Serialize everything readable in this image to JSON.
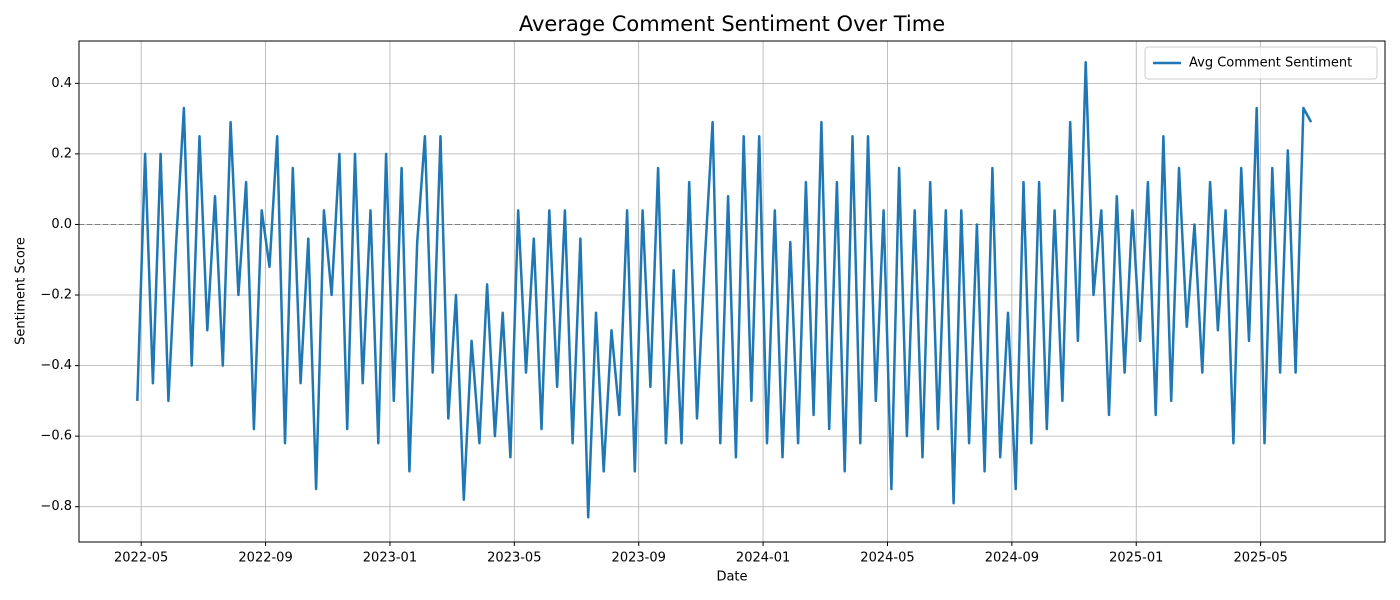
{
  "chart_data": {
    "type": "line",
    "title": "Average Comment Sentiment Over Time",
    "x_label": "Date",
    "y_label": "Sentiment Score",
    "x": [
      "2022-04",
      "2022-05",
      "2022-05",
      "2022-05",
      "2022-05",
      "2022-06",
      "2022-06",
      "2022-06",
      "2022-06",
      "2022-07",
      "2022-07",
      "2022-07",
      "2022-07",
      "2022-08",
      "2022-08",
      "2022-08",
      "2022-08",
      "2022-09",
      "2022-09",
      "2022-09",
      "2022-09",
      "2022-10",
      "2022-10",
      "2022-10",
      "2022-10",
      "2022-11",
      "2022-11",
      "2022-11",
      "2022-11",
      "2022-12",
      "2022-12",
      "2022-12",
      "2022-12",
      "2023-01",
      "2023-01",
      "2023-01",
      "2023-01",
      "2023-02",
      "2023-02",
      "2023-02",
      "2023-02",
      "2023-03",
      "2023-03",
      "2023-03",
      "2023-03",
      "2023-04",
      "2023-04",
      "2023-04",
      "2023-04",
      "2023-05",
      "2023-05",
      "2023-05",
      "2023-05",
      "2023-06",
      "2023-06",
      "2023-06",
      "2023-06",
      "2023-07",
      "2023-07",
      "2023-07",
      "2023-07",
      "2023-08",
      "2023-08",
      "2023-08",
      "2023-08",
      "2023-09",
      "2023-09",
      "2023-09",
      "2023-09",
      "2023-10",
      "2023-10",
      "2023-10",
      "2023-10",
      "2023-11",
      "2023-11",
      "2023-11",
      "2023-11",
      "2023-12",
      "2023-12",
      "2023-12",
      "2023-12",
      "2024-01",
      "2024-01",
      "2024-01",
      "2024-01",
      "2024-02",
      "2024-02",
      "2024-02",
      "2024-02",
      "2024-03",
      "2024-03",
      "2024-03",
      "2024-03",
      "2024-04",
      "2024-04",
      "2024-04",
      "2024-04",
      "2024-05",
      "2024-05",
      "2024-05",
      "2024-05",
      "2024-06",
      "2024-06",
      "2024-06",
      "2024-06",
      "2024-07",
      "2024-07",
      "2024-07",
      "2024-07",
      "2024-08",
      "2024-08",
      "2024-08",
      "2024-08",
      "2024-09",
      "2024-09",
      "2024-09",
      "2024-09",
      "2024-10",
      "2024-10",
      "2024-10",
      "2024-10",
      "2024-11",
      "2024-11",
      "2024-11",
      "2024-11",
      "2024-12",
      "2024-12",
      "2024-12",
      "2024-12",
      "2025-01",
      "2025-01",
      "2025-01",
      "2025-01",
      "2025-02",
      "2025-02",
      "2025-02",
      "2025-02",
      "2025-03",
      "2025-03",
      "2025-03",
      "2025-03",
      "2025-04",
      "2025-04",
      "2025-04",
      "2025-04",
      "2025-05",
      "2025-05",
      "2025-05",
      "2025-05",
      "2025-06",
      "2025-06",
      "2025-06"
    ],
    "series": [
      {
        "name": "Avg Comment Sentiment",
        "color": "#1f77b4",
        "values": [
          -0.5,
          0.2,
          -0.45,
          0.2,
          -0.5,
          -0.05,
          0.33,
          -0.4,
          0.25,
          -0.3,
          0.08,
          -0.4,
          0.29,
          -0.2,
          0.12,
          -0.58,
          0.04,
          -0.12,
          0.25,
          -0.62,
          0.16,
          -0.45,
          -0.04,
          -0.75,
          0.04,
          -0.2,
          0.2,
          -0.58,
          0.2,
          -0.45,
          0.04,
          -0.62,
          0.2,
          -0.5,
          0.16,
          -0.7,
          -0.05,
          0.25,
          -0.42,
          0.25,
          -0.55,
          -0.2,
          -0.78,
          -0.33,
          -0.62,
          -0.17,
          -0.6,
          -0.25,
          -0.66,
          0.04,
          -0.42,
          -0.04,
          -0.58,
          0.04,
          -0.46,
          0.04,
          -0.62,
          -0.04,
          -0.83,
          -0.25,
          -0.7,
          -0.3,
          -0.54,
          0.04,
          -0.7,
          0.04,
          -0.46,
          0.16,
          -0.62,
          -0.13,
          -0.62,
          0.12,
          -0.55,
          -0.1,
          0.29,
          -0.62,
          0.08,
          -0.66,
          0.25,
          -0.5,
          0.25,
          -0.62,
          0.04,
          -0.66,
          -0.05,
          -0.62,
          0.12,
          -0.54,
          0.29,
          -0.58,
          0.12,
          -0.7,
          0.25,
          -0.62,
          0.25,
          -0.5,
          0.04,
          -0.75,
          0.16,
          -0.6,
          0.04,
          -0.66,
          0.12,
          -0.58,
          0.04,
          -0.79,
          0.04,
          -0.62,
          0.0,
          -0.7,
          0.16,
          -0.66,
          -0.25,
          -0.75,
          0.12,
          -0.62,
          0.12,
          -0.58,
          0.04,
          -0.5,
          0.29,
          -0.33,
          0.46,
          -0.2,
          0.04,
          -0.54,
          0.08,
          -0.42,
          0.04,
          -0.33,
          0.12,
          -0.54,
          0.25,
          -0.5,
          0.16,
          -0.29,
          0.0,
          -0.42,
          0.12,
          -0.3,
          0.04,
          -0.62,
          0.16,
          -0.33,
          0.33,
          -0.62,
          0.16,
          -0.42,
          0.21,
          -0.42,
          0.33,
          0.29
        ]
      }
    ],
    "xlim": [
      "2022-03",
      "2025-09"
    ],
    "xticks": [
      "2022-05",
      "2022-09",
      "2023-01",
      "2023-05",
      "2023-09",
      "2024-01",
      "2024-05",
      "2024-09",
      "2025-01",
      "2025-05"
    ],
    "ylim": [
      -0.9,
      0.52
    ],
    "yticks": [
      {
        "value": -0.8,
        "label": "−0.8"
      },
      {
        "value": -0.6,
        "label": "−0.6"
      },
      {
        "value": -0.4,
        "label": "−0.4"
      },
      {
        "value": -0.2,
        "label": "−0.2"
      },
      {
        "value": 0,
        "label": "0.0"
      },
      0.2,
      0.4
    ],
    "reference_line": 0,
    "grid": true,
    "legend": "upper right"
  }
}
